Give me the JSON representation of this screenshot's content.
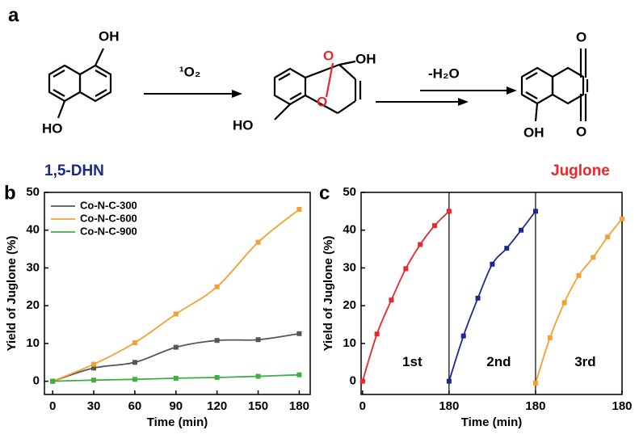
{
  "panel_labels": [
    "a",
    "b",
    "c"
  ],
  "scheme": {
    "reactant_oh_top": "OH",
    "reactant_oh_bottom": "HO",
    "reactant_name": "1,5-DHN",
    "arrow1_label": "¹O₂",
    "intermediate_o1": "O",
    "intermediate_o2": "O",
    "intermediate_oh": "OH",
    "intermediate_ho": "HO",
    "arrow2_label": "-H₂O",
    "product_o_top": "O",
    "product_o_bottom": "O",
    "product_oh": "OH",
    "product_name": "Juglone"
  },
  "chart_data": [
    {
      "type": "line",
      "xlabel": "Time (min)",
      "ylabel": "Yield of Juglone (%)",
      "x": [
        0,
        30,
        60,
        90,
        120,
        150,
        180
      ],
      "xlim": [
        -6,
        188
      ],
      "xticks": [
        0,
        30,
        60,
        90,
        120,
        150,
        180
      ],
      "ylim": [
        -3.5,
        50
      ],
      "yticks": [
        0,
        10,
        20,
        30,
        40,
        50
      ],
      "legend": "upper left",
      "series": [
        {
          "name": "Co-N-C-300",
          "color": "#555555",
          "values": [
            0,
            3.5,
            5,
            9,
            10.8,
            11,
            12.6
          ]
        },
        {
          "name": "Co-N-C-600",
          "color": "#f5a030",
          "values": [
            0,
            4.5,
            10.2,
            17.8,
            25,
            36.8,
            45.5
          ]
        },
        {
          "name": "Co-N-C-900",
          "color": "#3cb043",
          "values": [
            0,
            0.3,
            0.5,
            0.8,
            1.0,
            1.3,
            1.7
          ]
        }
      ]
    },
    {
      "type": "line",
      "xlabel": "Time (min)",
      "ylabel": "Yield of Juglone (%)",
      "xlim": [
        -3,
        540
      ],
      "xticks": [
        0,
        {
          "value": 180,
          "label": "180"
        },
        {
          "value": 360,
          "label": "180"
        },
        {
          "value": 540,
          "label": "180"
        }
      ],
      "ylim": [
        -3.5,
        50
      ],
      "yticks": [
        0,
        10,
        20,
        30,
        40,
        50
      ],
      "series": [
        {
          "name": "1st",
          "color": "#e8282b",
          "x": [
            0,
            30,
            60,
            90,
            120,
            150,
            180
          ],
          "values": [
            0,
            12.5,
            21.5,
            29.8,
            36.2,
            41.2,
            45
          ]
        },
        {
          "name": "2nd",
          "color": "#1b2a8a",
          "x": [
            180,
            210,
            240,
            270,
            300,
            330,
            360
          ],
          "values": [
            0,
            12,
            22,
            31,
            35.2,
            40,
            45
          ]
        },
        {
          "name": "3rd",
          "color": "#f5a030",
          "x": [
            360,
            390,
            420,
            450,
            480,
            510,
            540
          ],
          "values": [
            -0.5,
            11.5,
            20.8,
            28,
            32.8,
            38.2,
            43
          ]
        }
      ]
    }
  ]
}
